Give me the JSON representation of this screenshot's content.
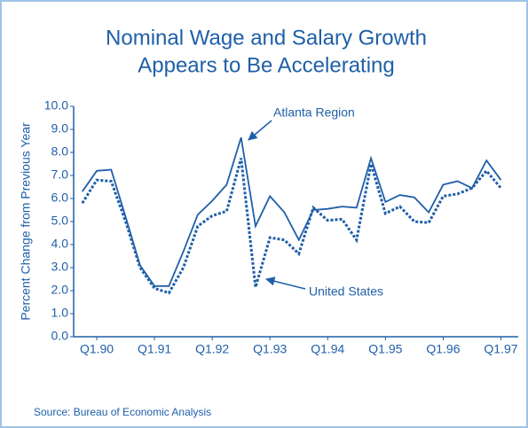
{
  "chart_data": {
    "type": "line",
    "title": [
      "Nominal Wage and Salary Growth",
      "Appears to Be Accelerating"
    ],
    "y_label": "Percent Change from Previous Year",
    "source": "Source: Bureau of Economic Analysis",
    "annotations": [
      "Atlanta Region",
      "United States"
    ],
    "x": [
      1989.75,
      1990,
      1990.25,
      1990.5,
      1990.75,
      1991,
      1991.25,
      1991.5,
      1991.75,
      1992,
      1992.25,
      1992.5,
      1992.75,
      1993,
      1993.25,
      1993.5,
      1993.75,
      1994,
      1994.25,
      1994.5,
      1994.75,
      1995,
      1995.25,
      1995.5,
      1995.75,
      1996,
      1996.25,
      1996.5,
      1996.75,
      1997
    ],
    "series": [
      {
        "name": "Atlanta Region",
        "color": "#1f5fa8",
        "dash": false,
        "values": [
          6.3,
          7.2,
          7.25,
          5.2,
          3.1,
          2.2,
          2.2,
          3.7,
          5.3,
          5.9,
          6.6,
          8.65,
          4.8,
          6.1,
          5.4,
          4.2,
          5.5,
          5.55,
          5.65,
          5.6,
          7.75,
          5.85,
          6.15,
          6.05,
          5.4,
          6.6,
          6.75,
          6.45,
          7.65,
          6.8
        ]
      },
      {
        "name": "United States",
        "color": "#1f5fa8",
        "dash": true,
        "values": [
          5.8,
          6.8,
          6.75,
          5.0,
          3.0,
          2.1,
          1.9,
          3.0,
          4.8,
          5.25,
          5.45,
          7.75,
          2.15,
          4.3,
          4.2,
          3.6,
          5.6,
          5.05,
          5.1,
          4.2,
          7.5,
          5.35,
          5.65,
          5.0,
          4.95,
          6.1,
          6.2,
          6.45,
          7.2,
          6.45
        ]
      }
    ],
    "xlim": [
      1989.6,
      1997.3
    ],
    "xticks": [
      {
        "value": 1990,
        "label": "Q1.90"
      },
      {
        "value": 1991,
        "label": "Q1.91"
      },
      {
        "value": 1992,
        "label": "Q1.92"
      },
      {
        "value": 1993,
        "label": "Q1.93"
      },
      {
        "value": 1994,
        "label": "Q1.94"
      },
      {
        "value": 1995,
        "label": "Q1.95"
      },
      {
        "value": 1996,
        "label": "Q1.96"
      },
      {
        "value": 1997,
        "label": "Q1.97"
      }
    ],
    "ylim": [
      0,
      10
    ],
    "yticks": [
      {
        "value": 0,
        "label": "0.0"
      },
      {
        "value": 1,
        "label": "1.0"
      },
      {
        "value": 2,
        "label": "2.0"
      },
      {
        "value": 3,
        "label": "3.0"
      },
      {
        "value": 4,
        "label": "4.0"
      },
      {
        "value": 5,
        "label": "5.0"
      },
      {
        "value": 6,
        "label": "6.0"
      },
      {
        "value": 7,
        "label": "7.0"
      },
      {
        "value": 8,
        "label": "8.0"
      },
      {
        "value": 9,
        "label": "9.0"
      },
      {
        "value": 10,
        "label": "10.0"
      }
    ],
    "grid": false
  }
}
